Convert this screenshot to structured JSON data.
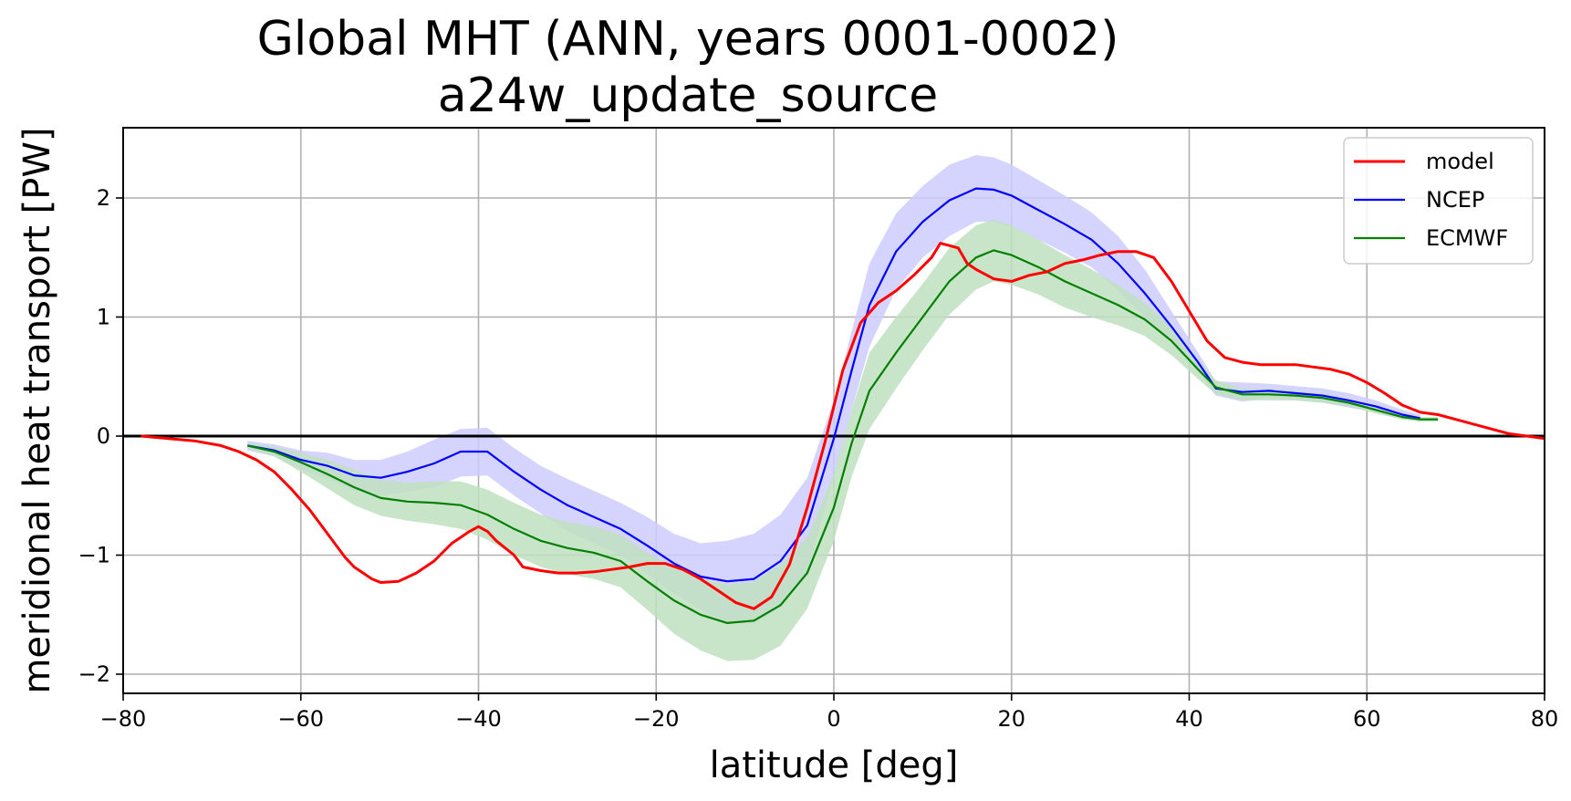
{
  "chart_data": {
    "type": "line",
    "title": "Global MHT (ANN, years 0001-0002)",
    "subtitle": "a24w_update_source",
    "xlabel": "latitude [deg]",
    "ylabel": "meridional heat transport [PW]",
    "xlim": [
      -80,
      80
    ],
    "ylim": [
      -2.15,
      2.6
    ],
    "xticks": [
      -80,
      -60,
      -40,
      -20,
      0,
      20,
      40,
      60,
      80
    ],
    "xtick_labels": [
      "−80",
      "−60",
      "−40",
      "−20",
      "0",
      "20",
      "40",
      "60",
      "80"
    ],
    "yticks": [
      -2,
      -1,
      0,
      1,
      2
    ],
    "ytick_labels": [
      "−2",
      "−1",
      "0",
      "1",
      "2"
    ],
    "grid": true,
    "zero_line": true,
    "legend_position": "top-right",
    "series": [
      {
        "name": "model",
        "color": "#ff0000",
        "x": [
          -78,
          -75,
          -72,
          -69,
          -67,
          -65,
          -63,
          -61,
          -59,
          -57,
          -55,
          -54,
          -52,
          -51,
          -49,
          -47,
          -45,
          -43,
          -41,
          -40,
          -39,
          -38,
          -36,
          -35,
          -33,
          -31,
          -29,
          -27,
          -25,
          -23,
          -21,
          -19,
          -17,
          -15,
          -13,
          -11,
          -9,
          -7,
          -5,
          -3,
          -1,
          1,
          3,
          5,
          7,
          9,
          11,
          12,
          13,
          14,
          15,
          16,
          18,
          20,
          22,
          24,
          26,
          28,
          30,
          32,
          34,
          36,
          38,
          40,
          42,
          44,
          46,
          48,
          50,
          52,
          54,
          56,
          58,
          60,
          62,
          64,
          66,
          68,
          70,
          72,
          74,
          76,
          78,
          80
        ],
        "y": [
          0.0,
          -0.02,
          -0.04,
          -0.08,
          -0.13,
          -0.2,
          -0.3,
          -0.45,
          -0.62,
          -0.82,
          -1.02,
          -1.1,
          -1.2,
          -1.23,
          -1.22,
          -1.15,
          -1.05,
          -0.9,
          -0.8,
          -0.76,
          -0.8,
          -0.88,
          -1.0,
          -1.1,
          -1.13,
          -1.15,
          -1.15,
          -1.14,
          -1.12,
          -1.1,
          -1.07,
          -1.07,
          -1.12,
          -1.2,
          -1.3,
          -1.4,
          -1.45,
          -1.35,
          -1.08,
          -0.6,
          -0.05,
          0.55,
          0.95,
          1.12,
          1.22,
          1.35,
          1.5,
          1.62,
          1.6,
          1.58,
          1.45,
          1.4,
          1.32,
          1.3,
          1.35,
          1.38,
          1.45,
          1.48,
          1.52,
          1.55,
          1.55,
          1.5,
          1.3,
          1.05,
          0.8,
          0.66,
          0.62,
          0.6,
          0.6,
          0.6,
          0.58,
          0.56,
          0.52,
          0.45,
          0.36,
          0.26,
          0.2,
          0.18,
          0.14,
          0.1,
          0.06,
          0.02,
          0.0,
          -0.02
        ]
      },
      {
        "name": "NCEP",
        "color": "#0000ff",
        "band_color": "#ccccff",
        "x": [
          -66,
          -63,
          -60,
          -57,
          -54,
          -51,
          -48,
          -45,
          -42,
          -39,
          -36,
          -33,
          -30,
          -27,
          -24,
          -21,
          -18,
          -15,
          -12,
          -9,
          -6,
          -3,
          0,
          2,
          4,
          7,
          10,
          13,
          16,
          18,
          20,
          23,
          26,
          29,
          32,
          35,
          38,
          41,
          43,
          46,
          49,
          52,
          55,
          58,
          61,
          64,
          66
        ],
        "y": [
          -0.08,
          -0.12,
          -0.2,
          -0.25,
          -0.33,
          -0.35,
          -0.3,
          -0.23,
          -0.13,
          -0.13,
          -0.3,
          -0.45,
          -0.58,
          -0.68,
          -0.78,
          -0.92,
          -1.07,
          -1.18,
          -1.22,
          -1.2,
          -1.05,
          -0.75,
          -0.02,
          0.55,
          1.1,
          1.55,
          1.8,
          1.98,
          2.08,
          2.07,
          2.02,
          1.9,
          1.78,
          1.65,
          1.45,
          1.2,
          0.92,
          0.62,
          0.4,
          0.37,
          0.38,
          0.36,
          0.34,
          0.3,
          0.25,
          0.18,
          0.15
        ],
        "band_upper": [
          -0.04,
          -0.07,
          -0.12,
          -0.14,
          -0.2,
          -0.2,
          -0.13,
          -0.03,
          0.06,
          0.07,
          -0.1,
          -0.25,
          -0.36,
          -0.46,
          -0.56,
          -0.68,
          -0.82,
          -0.9,
          -0.88,
          -0.82,
          -0.66,
          -0.35,
          0.3,
          0.88,
          1.45,
          1.87,
          2.1,
          2.28,
          2.36,
          2.34,
          2.28,
          2.15,
          2.02,
          1.88,
          1.68,
          1.4,
          1.05,
          0.7,
          0.46,
          0.45,
          0.44,
          0.42,
          0.4,
          0.36,
          0.3,
          0.22,
          0.18
        ],
        "band_lower": [
          -0.12,
          -0.17,
          -0.28,
          -0.36,
          -0.46,
          -0.5,
          -0.47,
          -0.43,
          -0.34,
          -0.33,
          -0.5,
          -0.65,
          -0.8,
          -0.9,
          -1.0,
          -1.16,
          -1.32,
          -1.46,
          -1.56,
          -1.58,
          -1.44,
          -1.15,
          -0.34,
          0.22,
          0.75,
          1.23,
          1.5,
          1.68,
          1.8,
          1.8,
          1.76,
          1.65,
          1.54,
          1.42,
          1.22,
          1.0,
          0.78,
          0.54,
          0.34,
          0.29,
          0.32,
          0.3,
          0.28,
          0.24,
          0.2,
          0.14,
          0.12
        ]
      },
      {
        "name": "ECMWF",
        "color": "#008000",
        "band_color": "#c0e0c0",
        "x": [
          -66,
          -63,
          -60,
          -57,
          -54,
          -51,
          -48,
          -45,
          -42,
          -39,
          -36,
          -33,
          -30,
          -27,
          -24,
          -21,
          -18,
          -15,
          -12,
          -9,
          -6,
          -3,
          0,
          2,
          4,
          7,
          10,
          13,
          16,
          18,
          20,
          23,
          26,
          29,
          32,
          35,
          38,
          41,
          43,
          46,
          49,
          52,
          55,
          58,
          61,
          64,
          66,
          68
        ],
        "y": [
          -0.08,
          -0.13,
          -0.22,
          -0.32,
          -0.43,
          -0.52,
          -0.55,
          -0.56,
          -0.58,
          -0.66,
          -0.78,
          -0.88,
          -0.94,
          -0.98,
          -1.05,
          -1.22,
          -1.38,
          -1.5,
          -1.57,
          -1.55,
          -1.42,
          -1.15,
          -0.6,
          -0.06,
          0.38,
          0.7,
          1.0,
          1.3,
          1.5,
          1.56,
          1.52,
          1.42,
          1.3,
          1.2,
          1.1,
          0.98,
          0.8,
          0.56,
          0.41,
          0.35,
          0.35,
          0.34,
          0.32,
          0.28,
          0.22,
          0.16,
          0.14,
          0.14
        ],
        "band_upper": [
          -0.06,
          -0.09,
          -0.14,
          -0.2,
          -0.28,
          -0.37,
          -0.39,
          -0.38,
          -0.38,
          -0.45,
          -0.56,
          -0.66,
          -0.72,
          -0.76,
          -0.83,
          -0.98,
          -1.1,
          -1.2,
          -1.25,
          -1.22,
          -1.08,
          -0.85,
          -0.32,
          0.22,
          0.7,
          1.0,
          1.28,
          1.58,
          1.77,
          1.82,
          1.77,
          1.65,
          1.52,
          1.4,
          1.27,
          1.12,
          0.92,
          0.64,
          0.47,
          0.4,
          0.4,
          0.38,
          0.36,
          0.31,
          0.25,
          0.18,
          0.16,
          0.16
        ],
        "band_lower": [
          -0.1,
          -0.17,
          -0.3,
          -0.44,
          -0.58,
          -0.67,
          -0.71,
          -0.74,
          -0.78,
          -0.87,
          -1.0,
          -1.1,
          -1.16,
          -1.2,
          -1.27,
          -1.46,
          -1.66,
          -1.8,
          -1.89,
          -1.88,
          -1.76,
          -1.45,
          -0.88,
          -0.34,
          0.06,
          0.4,
          0.72,
          1.02,
          1.23,
          1.3,
          1.27,
          1.19,
          1.08,
          1.0,
          0.93,
          0.84,
          0.68,
          0.48,
          0.35,
          0.3,
          0.3,
          0.3,
          0.28,
          0.25,
          0.19,
          0.14,
          0.12,
          0.12
        ]
      }
    ]
  }
}
